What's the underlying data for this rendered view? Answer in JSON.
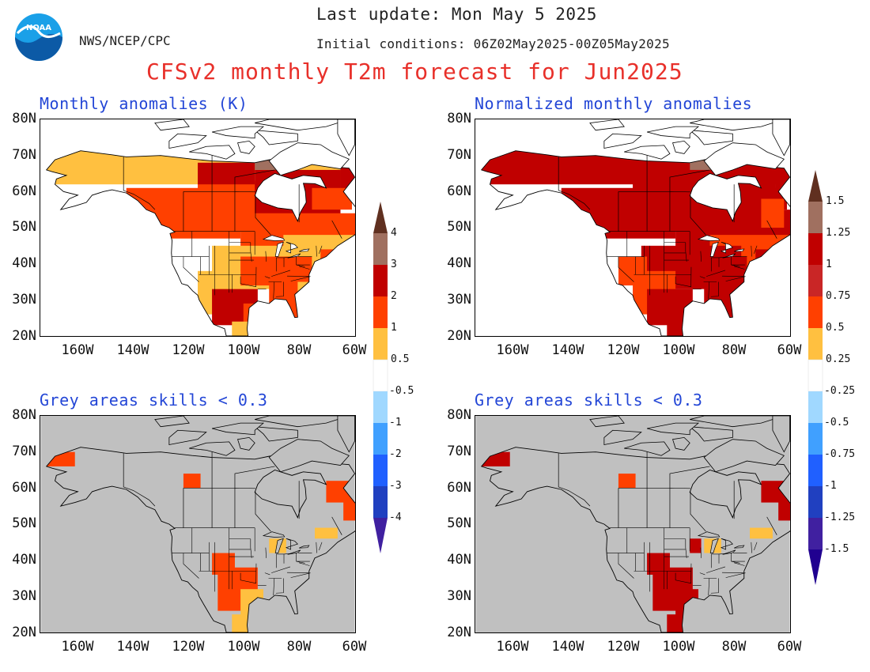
{
  "header": {
    "org": "NWS/NCEP/CPC",
    "logo_text": "NOAA",
    "last_update": "Last update: Mon May  5 2025",
    "initial_conditions": "Initial conditions: 06Z02May2025-00Z05May2025",
    "title": "CFSv2 monthly T2m forecast for Jun2025"
  },
  "panels": [
    {
      "title": "Monthly anomalies (K)"
    },
    {
      "title": "Normalized monthly anomalies"
    },
    {
      "title": "Grey areas skills < 0.3"
    },
    {
      "title": "Grey areas skills < 0.3"
    }
  ],
  "axes": {
    "lat_labels": [
      "80N",
      "70N",
      "60N",
      "50N",
      "40N",
      "30N",
      "20N"
    ],
    "lon_labels": [
      "160W",
      "140W",
      "120W",
      "100W",
      "80W",
      "60W"
    ]
  },
  "colorbar_left": {
    "ticks": [
      "4",
      "3",
      "2",
      "1",
      "0.5",
      "-0.5",
      "-1",
      "-2",
      "-3",
      "-4"
    ]
  },
  "colorbar_right": {
    "ticks": [
      "1.5",
      "1.25",
      "1",
      "0.75",
      "0.5",
      "0.25",
      "-0.25",
      "-0.5",
      "-0.75",
      "-1",
      "-1.25",
      "-1.5"
    ]
  },
  "colors": {
    "bins_warm": [
      "#ffc040",
      "#ff4000",
      "#c00000",
      "#a07060",
      "#603020"
    ],
    "bins_cool": [
      "#a0d8ff",
      "#40a0ff",
      "#2060ff",
      "#2040c0",
      "#4020a0"
    ],
    "skill_grey": "#c0c0c0",
    "title_red": "#e8302a",
    "panel_blue": "#2346d6"
  }
}
